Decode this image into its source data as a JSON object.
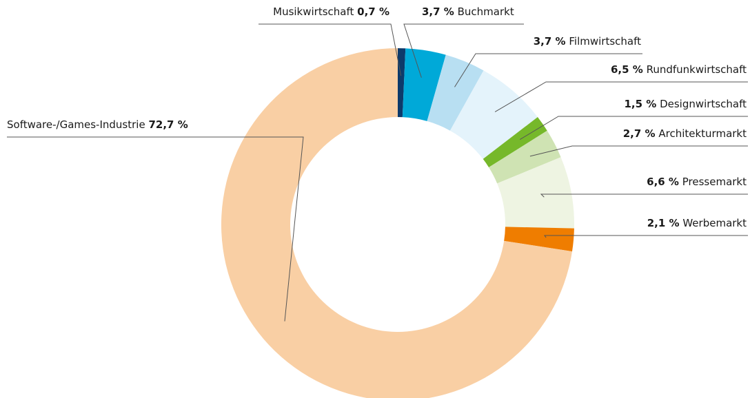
{
  "chart_data": {
    "type": "donut",
    "categories": [
      "Musikwirtschaft",
      "Buchmarkt",
      "Filmwirtschaft",
      "Rundfunkwirtschaft",
      "Designwirtschaft",
      "Architekturmarkt",
      "Pressemarkt",
      "Werbemarkt",
      "Software-/Games-Industrie"
    ],
    "values": [
      0.7,
      3.7,
      3.7,
      6.5,
      1.5,
      2.7,
      6.6,
      2.1,
      72.7
    ],
    "value_labels": [
      "0,7 %",
      "3,7 %",
      "3,7 %",
      "6,5 %",
      "1,5 %",
      "2,7 %",
      "6,6 %",
      "2,1 %",
      "72,7 %"
    ],
    "colors": [
      "#0d3a6b",
      "#00a9d8",
      "#b8dff2",
      "#e4f3fb",
      "#76b82a",
      "#cfe3b3",
      "#eef4e2",
      "#ef7d00",
      "#f9cfa4"
    ]
  }
}
